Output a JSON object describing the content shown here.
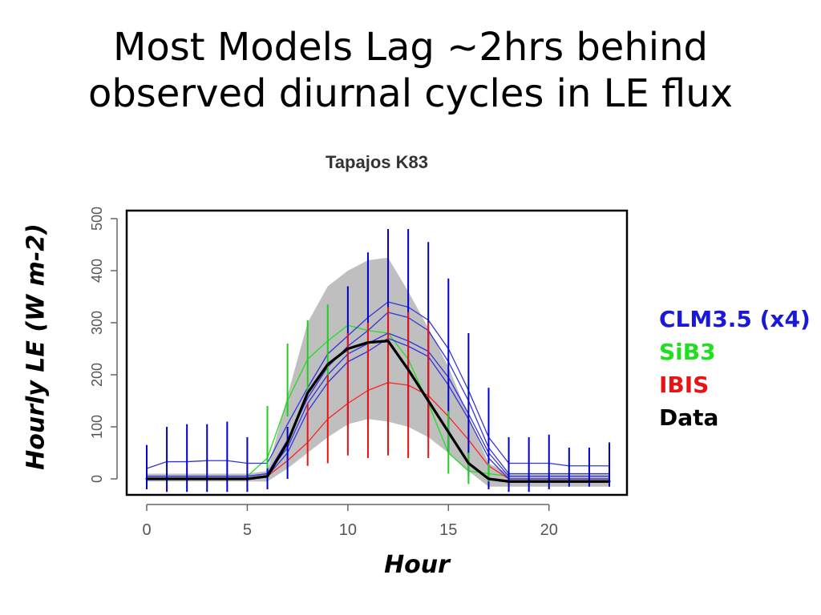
{
  "slide": {
    "title_line1": "Most Models Lag ~2hrs behind",
    "title_line2": "observed diurnal cycles in LE flux"
  },
  "chart_data": {
    "type": "line",
    "title": "Tapajos K83",
    "xlabel": "Hour",
    "ylabel": "Hourly LE (W m-2)",
    "xlim": [
      0,
      23
    ],
    "ylim": [
      0,
      500
    ],
    "x_ticks": [
      0,
      5,
      10,
      15,
      20
    ],
    "y_ticks": [
      0,
      100,
      200,
      300,
      400,
      500
    ],
    "legend_position": "right",
    "x": [
      0,
      1,
      2,
      3,
      4,
      5,
      6,
      7,
      8,
      9,
      10,
      11,
      12,
      13,
      14,
      15,
      16,
      17,
      18,
      19,
      20,
      21,
      22,
      23
    ],
    "data_band": {
      "name": "Data",
      "lower": [
        -5,
        -5,
        -5,
        -5,
        -5,
        -5,
        -5,
        20,
        50,
        80,
        105,
        115,
        110,
        100,
        80,
        50,
        15,
        -15,
        -15,
        -15,
        -15,
        -15,
        -15,
        -15
      ],
      "upper": [
        10,
        10,
        10,
        10,
        10,
        10,
        15,
        160,
        300,
        370,
        400,
        420,
        425,
        360,
        290,
        215,
        120,
        30,
        10,
        10,
        10,
        10,
        10,
        10
      ]
    },
    "series": [
      {
        "name": "Data",
        "color": "#000000",
        "width": 3,
        "values": [
          0,
          0,
          0,
          0,
          0,
          0,
          5,
          70,
          165,
          220,
          250,
          262,
          265,
          210,
          150,
          90,
          30,
          0,
          -5,
          -5,
          -5,
          -5,
          -5,
          -5
        ]
      },
      {
        "name": "SiB3",
        "color": "#22dd22",
        "width": 1.3,
        "values": [
          5,
          5,
          5,
          5,
          5,
          5,
          40,
          150,
          230,
          265,
          295,
          285,
          280,
          230,
          145,
          50,
          15,
          10,
          5,
          5,
          5,
          5,
          5,
          5
        ]
      },
      {
        "name": "IBIS",
        "color": "#ff2020",
        "width": 1.3,
        "values": [
          0,
          0,
          0,
          0,
          0,
          0,
          5,
          35,
          70,
          115,
          145,
          170,
          185,
          180,
          160,
          120,
          75,
          25,
          0,
          0,
          0,
          0,
          0,
          0
        ]
      },
      {
        "name": "CLM3.5",
        "color": "#3333dd",
        "width": 1.3,
        "values": [
          20,
          33,
          33,
          35,
          35,
          30,
          30,
          105,
          175,
          240,
          275,
          310,
          340,
          330,
          305,
          250,
          170,
          80,
          30,
          30,
          30,
          25,
          25,
          25
        ]
      },
      {
        "name": "CLM3.5",
        "color": "#3333dd",
        "width": 1.3,
        "values": [
          5,
          5,
          5,
          5,
          5,
          5,
          10,
          75,
          155,
          215,
          255,
          285,
          320,
          310,
          285,
          225,
          150,
          60,
          10,
          10,
          10,
          10,
          10,
          10
        ]
      },
      {
        "name": "CLM3.5",
        "color": "#3333dd",
        "width": 1.3,
        "values": [
          5,
          5,
          5,
          5,
          5,
          5,
          10,
          60,
          145,
          200,
          240,
          260,
          280,
          265,
          245,
          195,
          125,
          50,
          5,
          5,
          5,
          5,
          5,
          5
        ]
      },
      {
        "name": "CLM3.5",
        "color": "#3333dd",
        "width": 1.3,
        "values": [
          0,
          0,
          0,
          0,
          0,
          0,
          5,
          50,
          130,
          185,
          225,
          245,
          270,
          255,
          235,
          180,
          115,
          40,
          0,
          0,
          0,
          0,
          0,
          0
        ]
      }
    ],
    "error_bars": [
      {
        "name": "CLM3.5",
        "color": "#0000cc",
        "x": [
          0,
          1,
          2,
          3,
          4,
          5,
          6,
          7,
          10,
          11,
          12,
          13,
          14,
          15,
          16,
          17,
          18,
          19,
          20,
          21,
          22,
          23
        ],
        "low": [
          -20,
          -25,
          -25,
          -25,
          -25,
          -25,
          -20,
          0,
          100,
          100,
          100,
          100,
          80,
          50,
          5,
          -20,
          -25,
          -25,
          -20,
          -15,
          -15,
          -15
        ],
        "high": [
          65,
          100,
          105,
          105,
          110,
          80,
          80,
          100,
          370,
          435,
          480,
          480,
          455,
          385,
          280,
          175,
          80,
          80,
          85,
          60,
          60,
          70
        ]
      },
      {
        "name": "SiB3",
        "color": "#22cc22",
        "x": [
          6,
          7,
          8,
          9,
          15,
          16,
          17
        ],
        "low": [
          20,
          120,
          170,
          180,
          10,
          -10,
          -5
        ],
        "high": [
          140,
          260,
          305,
          335,
          130,
          50,
          30
        ]
      },
      {
        "name": "IBIS",
        "color": "#ee1111",
        "x": [
          8,
          9,
          10,
          11,
          12,
          13,
          14
        ],
        "low": [
          25,
          30,
          45,
          40,
          45,
          40,
          40
        ],
        "high": [
          145,
          200,
          280,
          300,
          330,
          320,
          300
        ]
      }
    ],
    "legend": [
      {
        "label": "CLM3.5 (x4)",
        "color": "#1a1ad6"
      },
      {
        "label": "SiB3",
        "color": "#1fe01f"
      },
      {
        "label": "IBIS",
        "color": "#e61414"
      },
      {
        "label": "Data",
        "color": "#000000"
      }
    ]
  }
}
